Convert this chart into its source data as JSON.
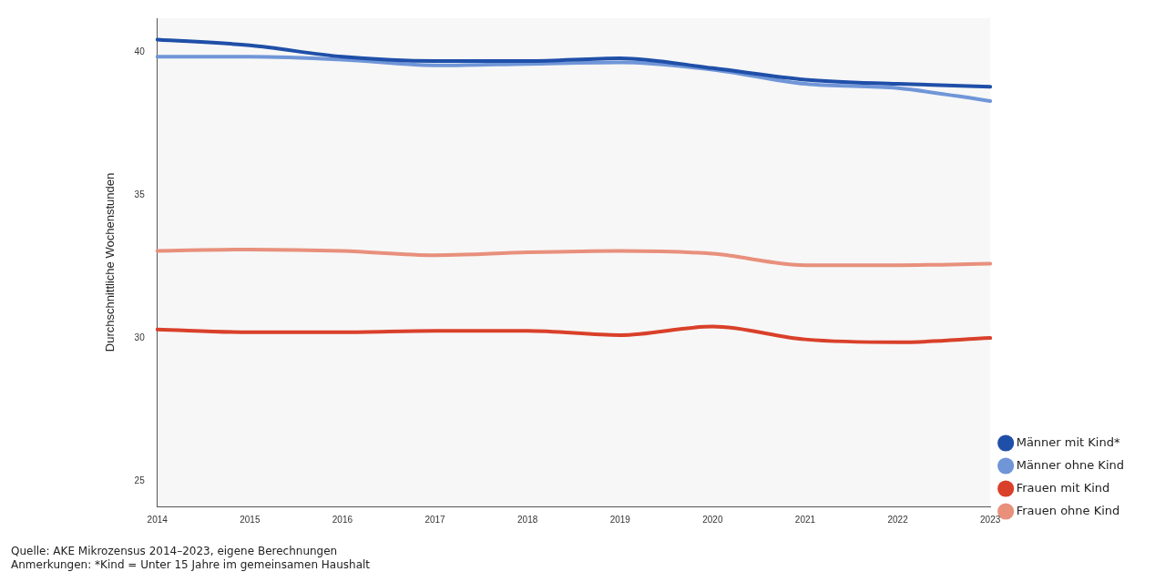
{
  "chart_data": {
    "type": "line",
    "ylabel": "Durchschnittliche Wochenstunden",
    "categories": [
      "2014",
      "2015",
      "2016",
      "2017",
      "2018",
      "2019",
      "2020",
      "2021",
      "2022",
      "2023"
    ],
    "series": [
      {
        "name": "Männer mit Kind*",
        "color": "#1f4fa8",
        "values": [
          40.45,
          40.25,
          39.85,
          39.7,
          39.7,
          39.8,
          39.45,
          39.05,
          38.9,
          38.8
        ]
      },
      {
        "name": "Männer ohne Kind",
        "color": "#7096d8",
        "values": [
          39.85,
          39.85,
          39.75,
          39.55,
          39.6,
          39.65,
          39.4,
          38.9,
          38.75,
          38.3
        ]
      },
      {
        "name": "Frauen mit Kind",
        "color": "#d9402a",
        "values": [
          30.3,
          30.2,
          30.2,
          30.25,
          30.25,
          30.1,
          30.4,
          29.95,
          29.85,
          30.0
        ]
      },
      {
        "name": "Frauen ohne Kind",
        "color": "#e8907c",
        "values": [
          33.05,
          33.1,
          33.05,
          32.9,
          33.0,
          33.05,
          32.95,
          32.55,
          32.55,
          32.6
        ]
      }
    ],
    "ylim": [
      24.1,
      41.2
    ],
    "yticks": [
      25,
      30,
      35,
      40
    ],
    "grid": false,
    "legend": "bottom right",
    "marker": "none",
    "line_style": "solid",
    "annotations": [
      "Quelle: AKE Mikrozensus 2014–2023, eigene Berechnungen",
      "Anmerkungen: *Kind = Unter 15 Jahre im gemeinsamen Haushalt"
    ]
  }
}
